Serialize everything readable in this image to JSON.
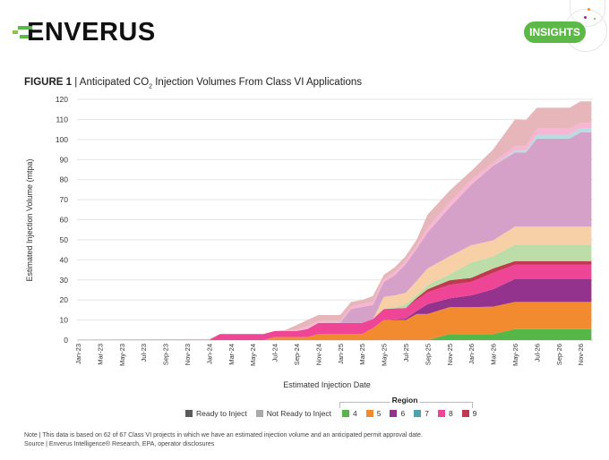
{
  "header": {
    "logo_text": "ENVERUS",
    "badge_label": "INSIGHTS"
  },
  "figure": {
    "label": "FIGURE 1",
    "title_pre": " | Anticipated CO",
    "title_sub": "2",
    "title_post": " Injection Volumes From Class VI Applications"
  },
  "notes": {
    "line1": "Note | This data is based on 62 of 67 Class VI projects in which we have an estimated injection volume and an anticipated permit approval date.",
    "line2": "Source | Enverus Intelligence® Research, EPA, operator disclosures"
  },
  "legend": {
    "status": [
      {
        "label": "Ready to Inject",
        "color": "#5a5a5a"
      },
      {
        "label": "Not Ready to Inject",
        "color": "#aaaaaa"
      }
    ],
    "region_title": "Region",
    "regions": [
      {
        "label": "4",
        "color": "#55b748"
      },
      {
        "label": "5",
        "color": "#f28b30"
      },
      {
        "label": "6",
        "color": "#93338d"
      },
      {
        "label": "7",
        "color": "#4aa3ad"
      },
      {
        "label": "8",
        "color": "#ee4596"
      },
      {
        "label": "9",
        "color": "#c0394f"
      }
    ]
  },
  "chart_data": {
    "type": "area",
    "stacked": true,
    "title": "Anticipated CO2 Injection Volumes From Class VI Applications",
    "xlabel": "Estimated Injection Date",
    "ylabel": "Estimated Injection Volume (mtpa)",
    "ylim": [
      0,
      120
    ],
    "yticks": [
      0,
      10,
      20,
      30,
      40,
      50,
      60,
      70,
      80,
      90,
      100,
      110,
      120
    ],
    "grid": true,
    "x_start": "Jan-23",
    "x_end": "Dec-26",
    "xtick_labels": [
      "Jan-23",
      "Mar-23",
      "May-23",
      "Jul-23",
      "Sep-23",
      "Nov-23",
      "Jan-24",
      "Mar-24",
      "May-24",
      "Jul-24",
      "Sep-24",
      "Nov-24",
      "Jan-25",
      "Mar-25",
      "May-25",
      "Jul-25",
      "Sep-25",
      "Nov-25",
      "Jan-26",
      "Mar-26",
      "May-26",
      "Jul-26",
      "Sep-26",
      "Nov-26"
    ],
    "x": [
      "Jan-23",
      "Oct-23",
      "Jan-24",
      "Feb-24",
      "Jun-24",
      "Jul-24",
      "Aug-24",
      "Sep-24",
      "Oct-24",
      "Nov-24",
      "Jan-25",
      "Feb-25",
      "Mar-25",
      "Apr-25",
      "May-25",
      "Jun-25",
      "Jul-25",
      "Aug-25",
      "Sep-25",
      "Nov-25",
      "Jan-26",
      "Mar-26",
      "May-26",
      "Jun-26",
      "Jul-26",
      "Oct-26",
      "Nov-26",
      "Dec-26"
    ],
    "x_month_index": [
      0,
      9,
      12,
      13,
      17,
      18,
      19,
      20,
      21,
      22,
      24,
      25,
      26,
      27,
      28,
      29,
      30,
      31,
      32,
      34,
      36,
      38,
      40,
      41,
      42,
      45,
      46,
      47
    ],
    "series": [
      {
        "name": "Ready to Inject - Region 4",
        "color": "#55b748",
        "values": [
          0,
          0,
          0,
          0,
          0,
          0,
          0,
          0,
          0,
          0,
          0,
          0,
          0,
          0,
          0,
          0,
          0,
          0,
          0,
          3,
          3,
          3,
          5.5,
          5.5,
          5.5,
          5.5,
          5.5,
          5.5
        ]
      },
      {
        "name": "Ready to Inject - Region 5",
        "color": "#f28b30",
        "values": [
          0,
          0,
          0,
          0,
          0,
          1.5,
          1.5,
          1.5,
          1.5,
          3,
          3,
          3,
          3,
          6,
          10,
          10,
          10,
          13,
          13,
          13.4,
          13.4,
          13.7,
          13.5,
          13.5,
          13.5,
          13.5,
          13.5,
          13.5
        ]
      },
      {
        "name": "Ready to Inject - Region 6",
        "color": "#93338d",
        "values": [
          0,
          0,
          0,
          0,
          0,
          0,
          0,
          0,
          0,
          0,
          0,
          0,
          0,
          0,
          0,
          0.3,
          0.7,
          1.5,
          4.9,
          4.4,
          5.9,
          8.6,
          11.5,
          11.5,
          11.5,
          11.5,
          11.5,
          11.5
        ]
      },
      {
        "name": "Ready to Inject - Region 8",
        "color": "#ee4596",
        "values": [
          0,
          0,
          0,
          3,
          3,
          3,
          3,
          3,
          4,
          5.5,
          5.5,
          5.5,
          5.5,
          4.5,
          5.5,
          5.5,
          5.3,
          5.5,
          5.9,
          6.7,
          6.7,
          8.2,
          7,
          7,
          7,
          7,
          7,
          7
        ]
      },
      {
        "name": "Ready to Inject - Region 9",
        "color": "#c0394f",
        "values": [
          0,
          0,
          0,
          0,
          0,
          0,
          0,
          0,
          0,
          0,
          0,
          0,
          0,
          0,
          0,
          0,
          0,
          1,
          1.5,
          2.3,
          2,
          2.2,
          1.9,
          1.9,
          1.9,
          1.9,
          1.9,
          1.9
        ]
      },
      {
        "name": "Not Ready to Inject - Region 4",
        "color": "#bddda8",
        "values": [
          0,
          0,
          0,
          0,
          0,
          0,
          0,
          0,
          0,
          0,
          0,
          0,
          0,
          0,
          0,
          0.5,
          1.9,
          1.5,
          2.2,
          2.9,
          7.7,
          6,
          8.2,
          8.2,
          8.2,
          8.2,
          8.2,
          8.2
        ]
      },
      {
        "name": "Not Ready to Inject - Region 5",
        "color": "#f8d0a8",
        "values": [
          0,
          0,
          0,
          0,
          0,
          0,
          0,
          0,
          0,
          0,
          0,
          0,
          0,
          0,
          6,
          6,
          5.6,
          7,
          8.2,
          9,
          8.6,
          8,
          8.9,
          8.9,
          8.9,
          8.9,
          8.9,
          8.9
        ]
      },
      {
        "name": "Not Ready to Inject - Region 6",
        "color": "#d6a1c8",
        "values": [
          0,
          0,
          0,
          0,
          0,
          0,
          0,
          0,
          0,
          0,
          0,
          7,
          8,
          7,
          7.5,
          10,
          14.4,
          16,
          17.9,
          24.3,
          30.1,
          37.2,
          37,
          37,
          43.9,
          43.9,
          47,
          47
        ]
      },
      {
        "name": "Not Ready to Inject - Region 7",
        "color": "#b8dde0",
        "values": [
          0,
          0,
          0,
          0,
          0,
          0,
          0,
          0,
          0,
          0,
          0,
          0,
          0,
          0,
          0,
          0,
          0,
          0,
          0,
          0,
          0,
          0,
          1,
          1,
          2,
          2,
          2.2,
          2.2
        ]
      },
      {
        "name": "Not Ready to Inject - Region 8",
        "color": "#f6b6d4",
        "values": [
          0,
          0,
          0,
          0,
          0,
          0,
          0,
          0.5,
          1.5,
          1,
          1,
          1,
          1.5,
          1.5,
          1.5,
          1.5,
          1.5,
          1.5,
          2.2,
          2.5,
          2.6,
          1.5,
          2.2,
          2.2,
          3,
          3,
          2.6,
          2.6
        ]
      },
      {
        "name": "Not Ready to Inject - Region 9",
        "color": "#e6b6ba",
        "values": [
          0.3,
          0.5,
          0.5,
          0,
          0,
          0,
          0.5,
          2.5,
          3,
          3,
          3,
          2.5,
          2,
          3,
          2,
          2.5,
          2.5,
          3,
          6.7,
          5.9,
          4.3,
          6.6,
          13.3,
          13,
          10.4,
          10.4,
          10.7,
          10.7
        ]
      }
    ]
  }
}
